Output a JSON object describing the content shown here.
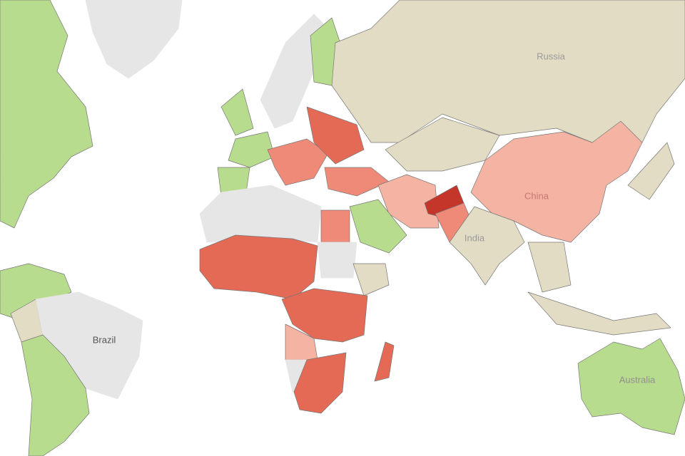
{
  "map": {
    "labels": [
      "Russia",
      "China",
      "India",
      "Brazil",
      "Australia"
    ]
  }
}
